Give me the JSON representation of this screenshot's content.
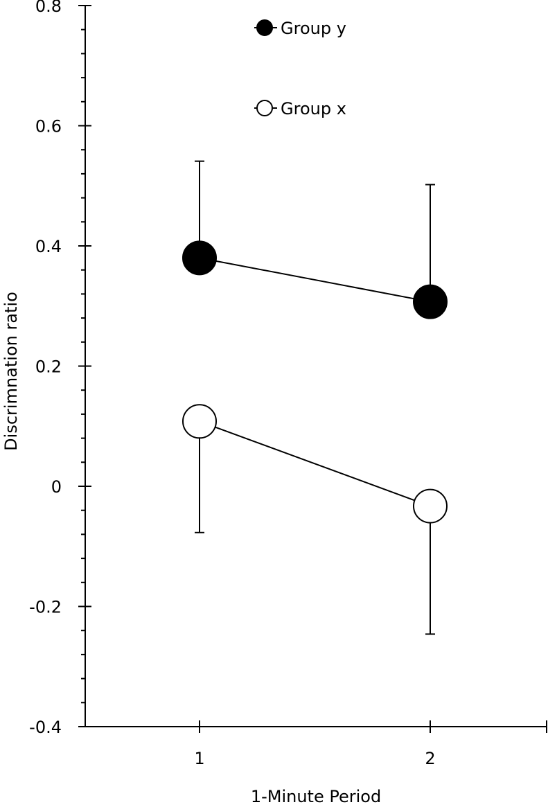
{
  "chart_data": {
    "type": "line",
    "title": "",
    "xlabel": "1-Minute Period",
    "ylabel": "Discrimnation ratio",
    "categories": [
      "1",
      "2"
    ],
    "ylim": [
      -0.4,
      0.8
    ],
    "yticks": [
      "-0.4",
      "-0.2",
      "0",
      "0.2",
      "0.4",
      "0.6",
      "0.8"
    ],
    "ytick_values": [
      -0.4,
      -0.2,
      0,
      0.2,
      0.4,
      0.6,
      0.8
    ],
    "legend_position": "top-center",
    "grid": false,
    "series": [
      {
        "name": "Group y",
        "marker": "filled-circle",
        "color": "#000000",
        "values": [
          0.38,
          0.307
        ],
        "error": [
          0.161,
          0.195
        ],
        "error_direction": "up"
      },
      {
        "name": "Group x",
        "marker": "open-circle",
        "color": "#ffffff",
        "values": [
          0.108,
          -0.033
        ],
        "error": [
          0.185,
          0.213
        ],
        "error_direction": "down"
      }
    ]
  }
}
